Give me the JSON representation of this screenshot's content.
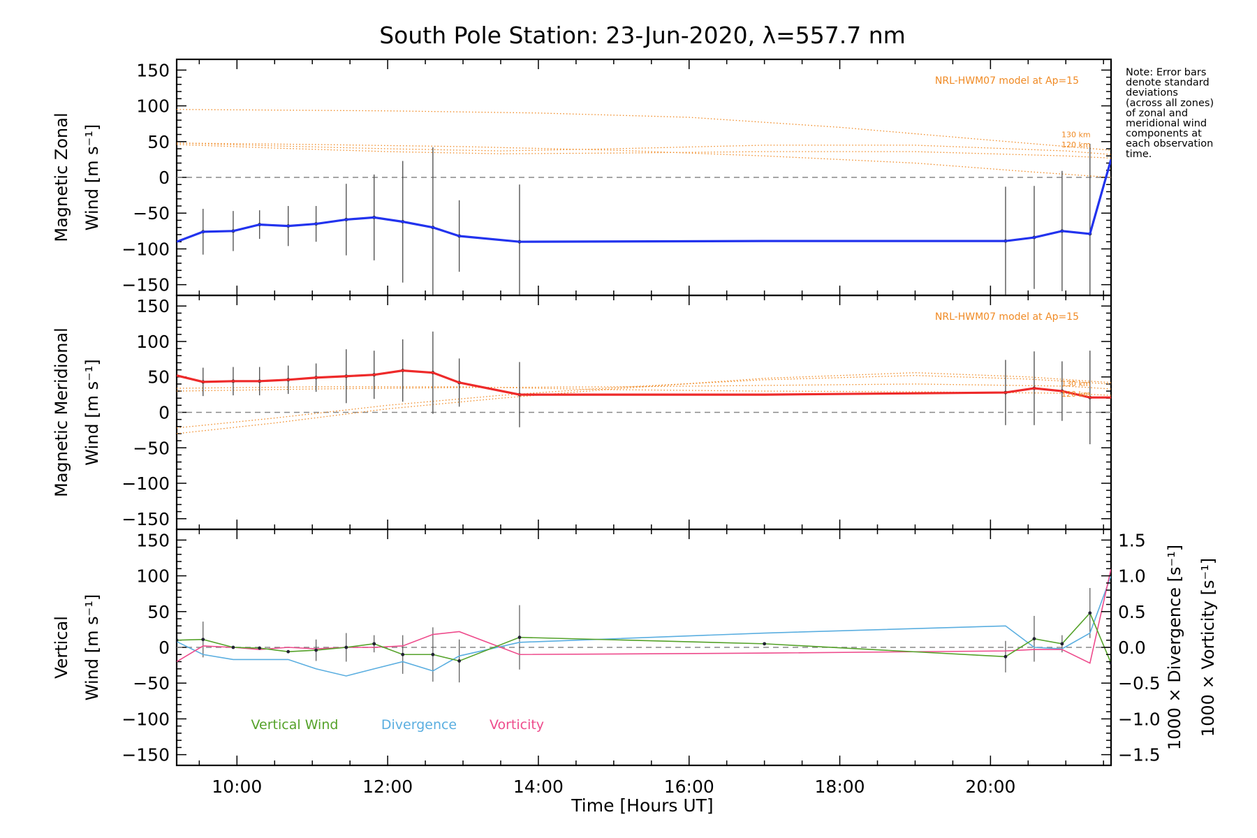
{
  "figure": {
    "title": "South Pole Station: 23-Jun-2020, λ=557.7 nm",
    "note_lines": [
      "Note: Error bars",
      "denote standard",
      "deviations",
      "(across all zones)",
      "of zonal and",
      "meridional wind",
      "components at",
      "each observation",
      "time."
    ],
    "model_label": "NRL-HWM07 model at Ap=15",
    "km_labels": [
      "130 km",
      "120 km"
    ]
  },
  "colors": {
    "zonal": "#2233ee",
    "meridional": "#ee2a2a",
    "vertical": "#55a22a",
    "divergence": "#5aaee0",
    "vorticity": "#ee4b8c",
    "model": "#f08a24",
    "errorbar": "#555555"
  },
  "chart_data": [
    {
      "type": "line",
      "panel": "zonal",
      "ylabel": "Magnetic Zonal",
      "ylabel2": "Wind",
      "yunit": "[m s⁻¹]",
      "xlim": [
        9.2,
        21.6
      ],
      "ylim": [
        -165,
        165
      ],
      "yticks": [
        150,
        100,
        50,
        0,
        -50,
        -100,
        -150
      ],
      "x": [
        9.2,
        9.55,
        9.95,
        10.3,
        10.68,
        11.05,
        11.45,
        11.82,
        12.2,
        12.6,
        12.95,
        13.75,
        17.0,
        20.2,
        20.58,
        20.95,
        21.32,
        21.6
      ],
      "values": [
        -90,
        -76,
        -75,
        -66,
        -68,
        -65,
        -59,
        -56,
        -62,
        -70,
        -82,
        -90,
        -89,
        -89,
        -84,
        -75,
        -79,
        25
      ],
      "errors": [
        0,
        32,
        28,
        20,
        28,
        25,
        50,
        60,
        85,
        112,
        50,
        80,
        0,
        76,
        72,
        84,
        126,
        0
      ],
      "series_name": "Zonal Wind",
      "model_curves": [
        {
          "name": "model-top",
          "x": [
            9.2,
            12.0,
            14.0,
            16.0,
            18.0,
            20.0,
            21.6
          ],
          "y": [
            95,
            93,
            90,
            84,
            70,
            52,
            38
          ]
        },
        {
          "name": "130 km",
          "x": [
            9.2,
            10.5,
            12.0,
            13.5,
            15.0,
            17.0,
            19.0,
            21.0,
            21.6
          ],
          "y": [
            48,
            44,
            40,
            37,
            40,
            45,
            45,
            37,
            32
          ]
        },
        {
          "name": "120 km",
          "x": [
            9.2,
            10.5,
            12.0,
            13.5,
            15.0,
            17.0,
            19.0,
            21.0,
            21.6
          ],
          "y": [
            46,
            41,
            36,
            33,
            34,
            36,
            36,
            30,
            27
          ]
        },
        {
          "name": "model-low",
          "x": [
            9.2,
            11.0,
            13.0,
            15.0,
            17.0,
            19.0,
            20.5,
            21.6
          ],
          "y": [
            48,
            46,
            43,
            38,
            30,
            20,
            8,
            0
          ]
        }
      ]
    },
    {
      "type": "line",
      "panel": "meridional",
      "ylabel": "Magnetic Meridional",
      "ylabel2": "Wind",
      "yunit": "[m s⁻¹]",
      "xlim": [
        9.2,
        21.6
      ],
      "ylim": [
        -165,
        165
      ],
      "yticks": [
        150,
        100,
        50,
        0,
        -50,
        -100,
        -150
      ],
      "x": [
        9.2,
        9.55,
        9.95,
        10.3,
        10.68,
        11.05,
        11.45,
        11.82,
        12.2,
        12.6,
        12.95,
        13.75,
        17.0,
        20.2,
        20.58,
        20.95,
        21.32,
        21.6
      ],
      "values": [
        52,
        43,
        44,
        44,
        46,
        49,
        51,
        53,
        59,
        56,
        42,
        25,
        25,
        28,
        34,
        30,
        21,
        21
      ],
      "errors": [
        0,
        20,
        20,
        20,
        20,
        20,
        38,
        34,
        44,
        58,
        34,
        46,
        0,
        46,
        52,
        42,
        66,
        0
      ],
      "series_name": "Meridional Wind",
      "model_curves": [
        {
          "name": "model-a",
          "x": [
            9.2,
            10.5,
            12.0,
            13.5,
            15.0,
            17.0,
            19.0,
            20.5,
            21.6
          ],
          "y": [
            -30,
            -15,
            5,
            20,
            33,
            48,
            56,
            50,
            42
          ]
        },
        {
          "name": "model-b",
          "x": [
            9.2,
            10.5,
            12.0,
            13.5,
            15.0,
            17.0,
            19.0,
            20.5,
            21.6
          ],
          "y": [
            -22,
            -8,
            10,
            24,
            35,
            46,
            52,
            47,
            40
          ]
        },
        {
          "name": "130 km",
          "x": [
            9.2,
            11.0,
            13.0,
            15.0,
            17.0,
            19.0,
            21.0,
            21.6
          ],
          "y": [
            30,
            33,
            35,
            36,
            38,
            40,
            37,
            33
          ]
        },
        {
          "name": "120 km",
          "x": [
            9.2,
            11.0,
            13.0,
            15.0,
            17.0,
            19.0,
            21.0,
            21.6
          ],
          "y": [
            34,
            36,
            36,
            32,
            30,
            29,
            27,
            24
          ]
        }
      ]
    },
    {
      "type": "line",
      "panel": "vertical",
      "ylabel": "Vertical",
      "ylabel2": "Wind",
      "yunit": "[m s⁻¹]",
      "xlabel": "Time [Hours UT]",
      "xlim": [
        9.2,
        21.6
      ],
      "ylim": [
        -165,
        165
      ],
      "yticks": [
        150,
        100,
        50,
        0,
        -50,
        -100,
        -150
      ],
      "xticks": [
        10,
        12,
        14,
        16,
        18,
        20
      ],
      "xtick_labels": [
        "10:00",
        "12:00",
        "14:00",
        "16:00",
        "18:00",
        "20:00"
      ],
      "right_axis": {
        "ylim": [
          -1.65,
          1.65
        ],
        "yticks": [
          1.5,
          1.0,
          0.5,
          0.0,
          -0.5,
          -1.0,
          -1.5
        ],
        "ytick_labels": [
          "1.5",
          "1.0",
          "0.5",
          "0.0",
          "−0.5",
          "−1.0",
          "−1.5"
        ],
        "label_divergence": "1000 × Divergence",
        "label_vorticity": "1000 × Vorticity",
        "unit": "[s⁻¹]"
      },
      "legend": [
        "Vertical Wind",
        "Divergence",
        "Vorticity"
      ],
      "series": [
        {
          "name": "Vertical Wind",
          "x": [
            9.2,
            9.55,
            9.95,
            10.3,
            10.68,
            11.05,
            11.45,
            11.82,
            12.2,
            12.6,
            12.95,
            13.75,
            17.0,
            20.2,
            20.58,
            20.95,
            21.32,
            21.6
          ],
          "values": [
            10,
            11,
            0,
            -1,
            -6,
            -4,
            0,
            5,
            -10,
            -10,
            -19,
            14,
            5,
            -13,
            12,
            5,
            48,
            -22
          ],
          "errors": [
            0,
            25,
            0,
            0,
            0,
            15,
            20,
            12,
            27,
            38,
            30,
            45,
            0,
            22,
            32,
            12,
            35,
            0
          ]
        },
        {
          "name": "Divergence",
          "axis": "right",
          "x": [
            9.2,
            9.55,
            9.95,
            10.3,
            10.68,
            11.05,
            11.45,
            11.82,
            12.2,
            12.6,
            12.95,
            13.75,
            17.0,
            20.2,
            20.58,
            20.95,
            21.32,
            21.6
          ],
          "values": [
            0.08,
            -0.1,
            -0.17,
            -0.17,
            -0.17,
            -0.3,
            -0.4,
            -0.3,
            -0.2,
            -0.33,
            -0.12,
            0.07,
            0.2,
            0.3,
            0.0,
            -0.02,
            0.2,
            1.0
          ]
        },
        {
          "name": "Vorticity",
          "axis": "right",
          "x": [
            9.2,
            9.55,
            9.95,
            10.3,
            10.68,
            11.05,
            11.45,
            11.82,
            12.2,
            12.6,
            12.95,
            13.75,
            17.0,
            20.2,
            20.58,
            20.95,
            21.32,
            21.6
          ],
          "values": [
            -0.2,
            0.02,
            0.0,
            -0.03,
            0.0,
            -0.02,
            0.0,
            0.0,
            0.02,
            0.18,
            0.22,
            -0.1,
            -0.08,
            -0.05,
            -0.03,
            -0.03,
            -0.22,
            1.1
          ]
        }
      ]
    }
  ]
}
